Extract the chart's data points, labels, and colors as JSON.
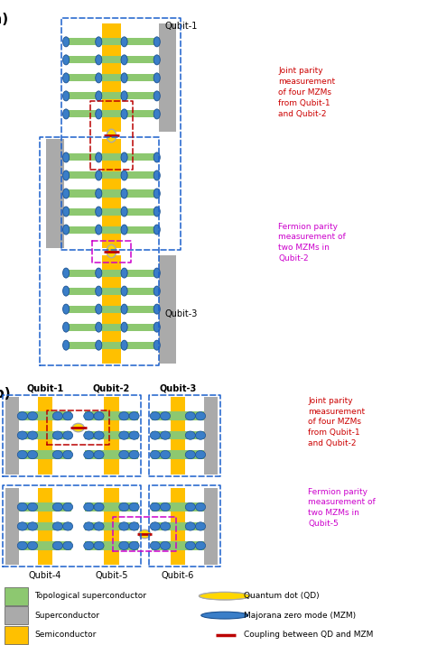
{
  "colors": {
    "topo_sc": "#8DC870",
    "sc_gray": "#AAAAAA",
    "semiconductor": "#FFC000",
    "mzm_blue": "#3A7EC8",
    "mzm_edge": "#1A5090",
    "qd_yellow": "#FFD700",
    "qd_edge": "#AAAAAA",
    "coupling_red": "#BB0000",
    "dashed_blue": "#1A5FCC",
    "dashed_magenta": "#CC00CC",
    "dashed_red": "#BB0000",
    "text_red": "#CC0000",
    "text_magenta": "#CC00CC",
    "bg": "#FFFFFF"
  },
  "legend": {
    "topo_label": "Topological superconductor",
    "sc_label": "Superconductor",
    "semi_label": "Semiconductor",
    "qd_label": "Quantum dot (QD)",
    "mzm_label": "Majorana zero mode (MZM)",
    "coupling_label": "Coupling between QD and MZM"
  }
}
